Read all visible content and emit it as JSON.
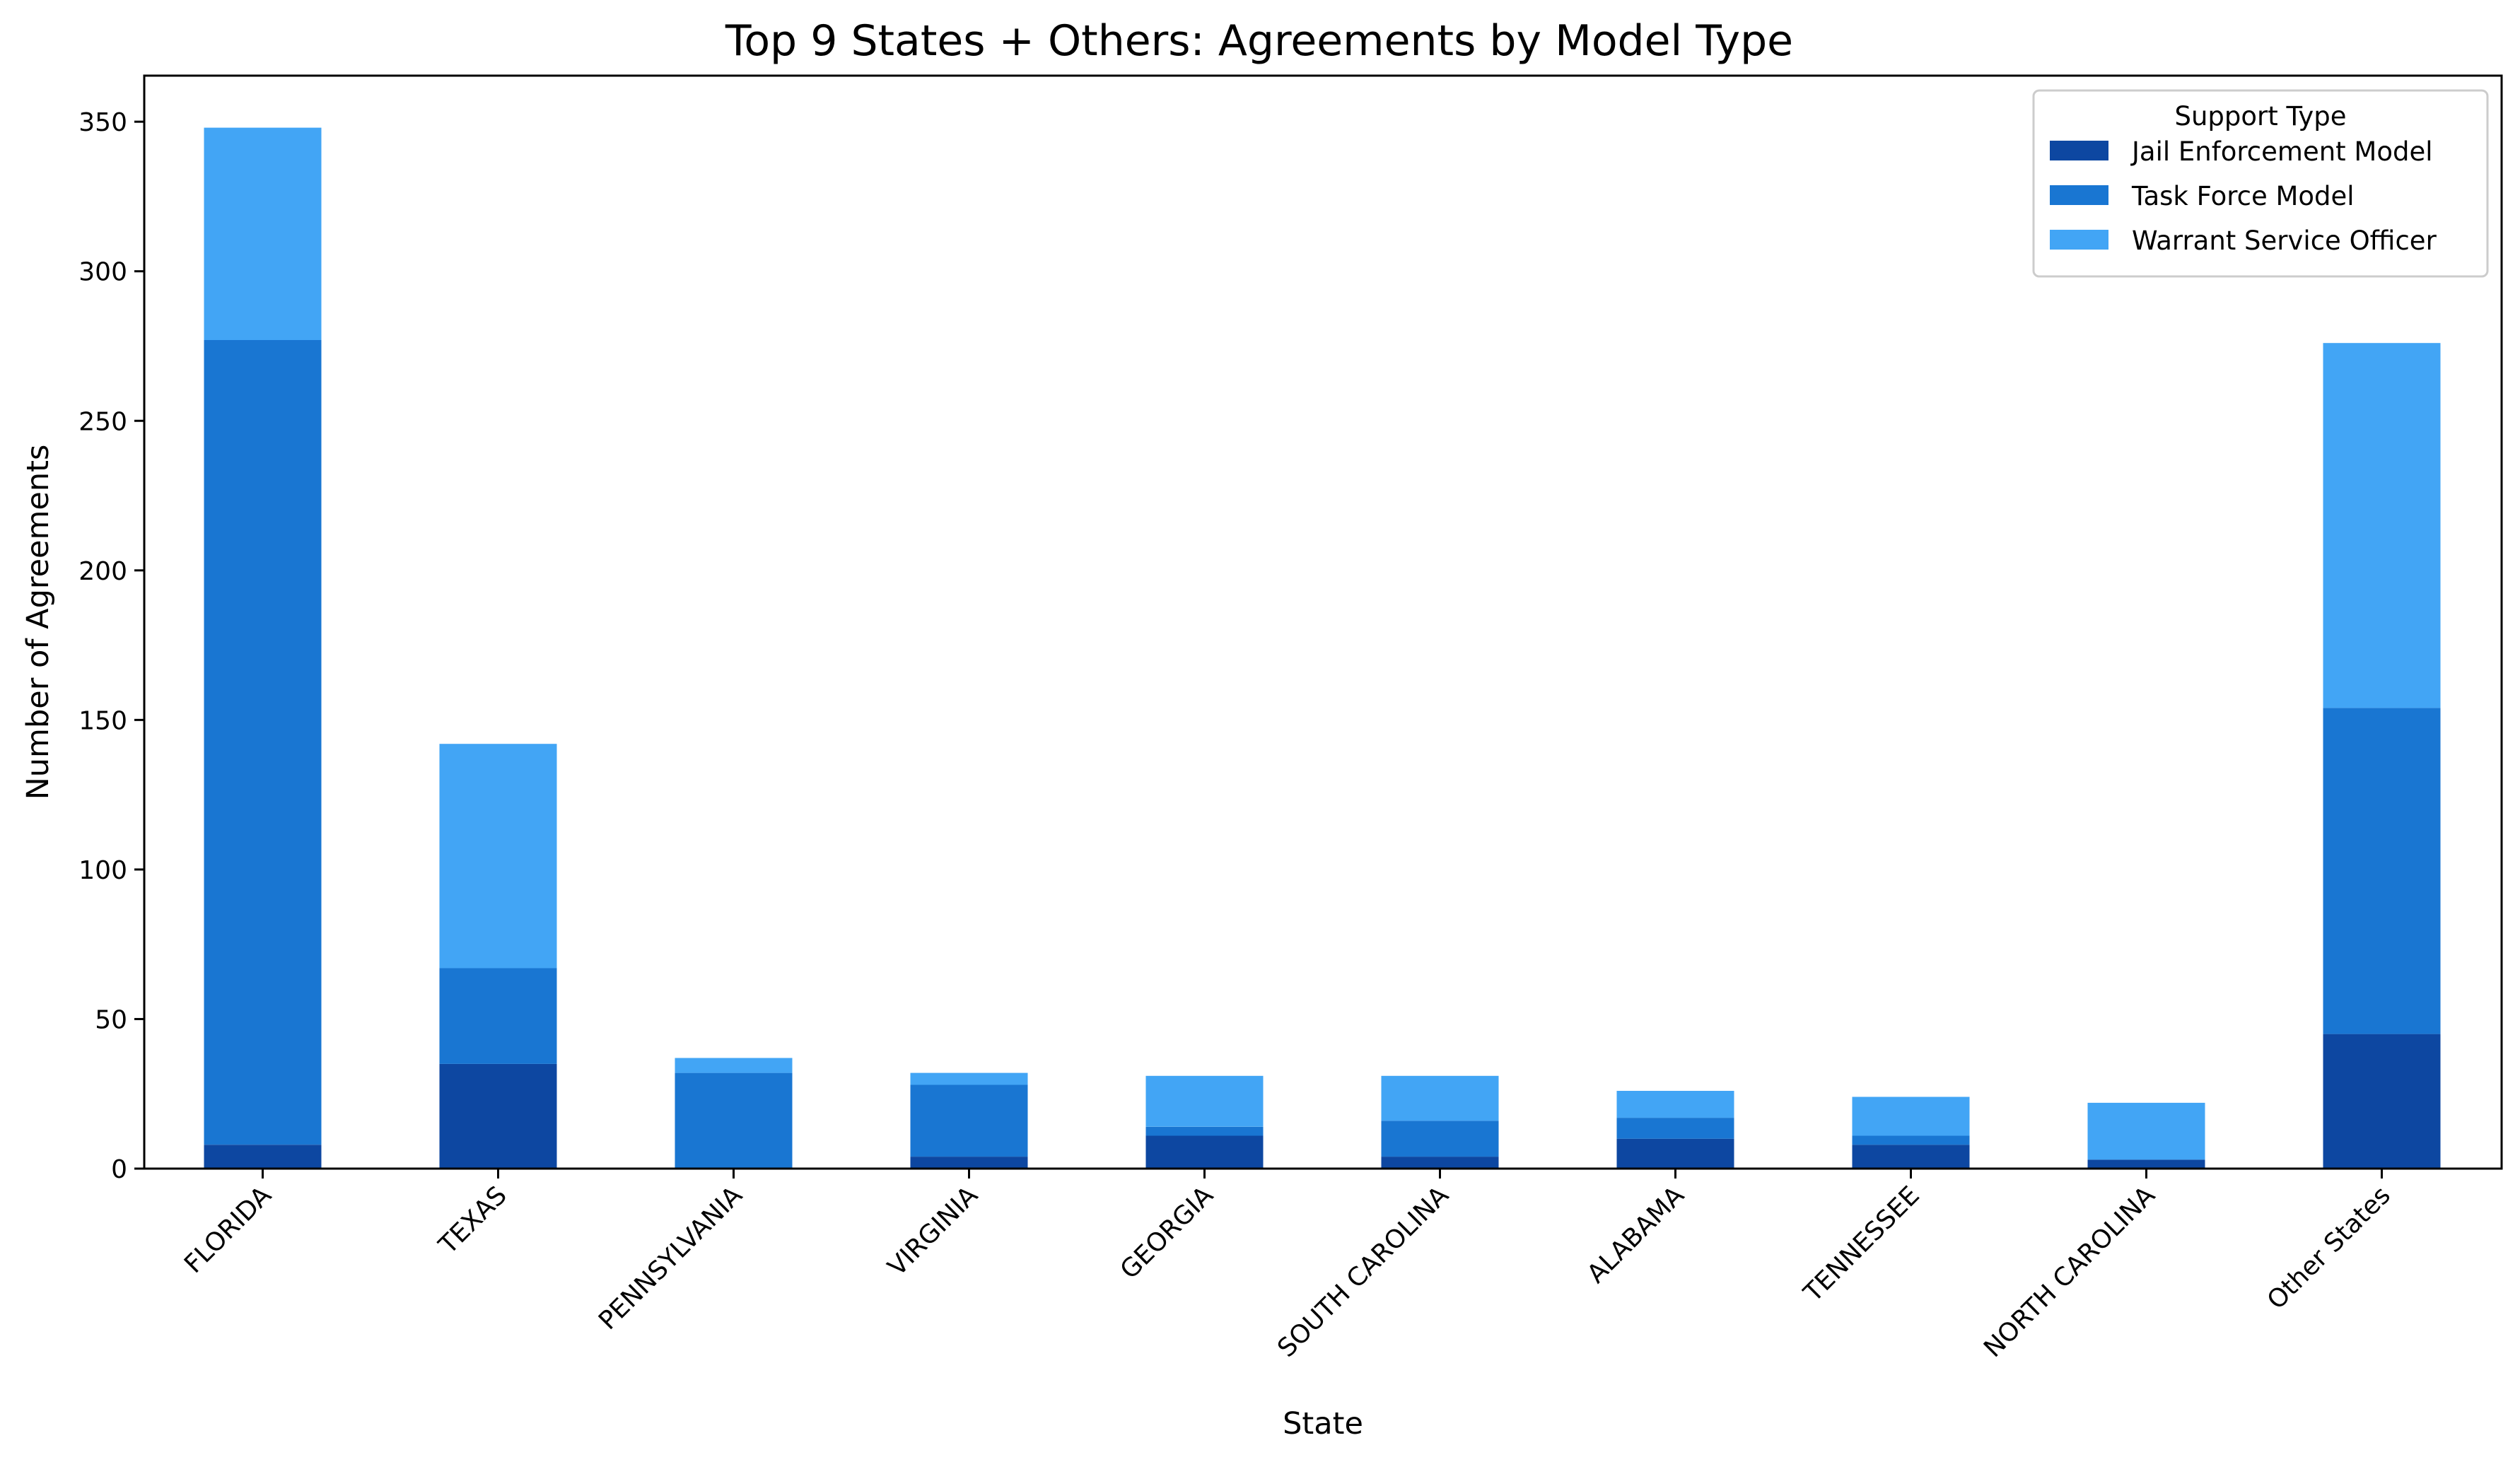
{
  "chart_data": {
    "type": "bar",
    "stacked": true,
    "title": "Top 9 States + Others: Agreements by Model Type",
    "xlabel": "State",
    "ylabel": "Number of Agreements",
    "categories": [
      "FLORIDA",
      "TEXAS",
      "PENNSYLVANIA",
      "VIRGINIA",
      "GEORGIA",
      "SOUTH CAROLINA",
      "ALABAMA",
      "TENNESSEE",
      "NORTH CAROLINA",
      "Other States"
    ],
    "series": [
      {
        "name": "Jail Enforcement Model",
        "color": "#0d47a1",
        "values": [
          8,
          35,
          0,
          4,
          11,
          4,
          10,
          8,
          3,
          45
        ]
      },
      {
        "name": "Task Force Model",
        "color": "#1976d2",
        "values": [
          269,
          32,
          32,
          24,
          3,
          12,
          7,
          3,
          0,
          109
        ]
      },
      {
        "name": "Warrant Service Officer",
        "color": "#42a5f5",
        "values": [
          71,
          75,
          5,
          4,
          17,
          15,
          9,
          13,
          19,
          122
        ]
      }
    ],
    "ylim": [
      0,
      365.4
    ],
    "yticks": [
      0,
      50,
      100,
      150,
      200,
      250,
      300,
      350
    ],
    "grid": false,
    "legend": {
      "title": "Support Type",
      "placement": "top-right"
    }
  }
}
